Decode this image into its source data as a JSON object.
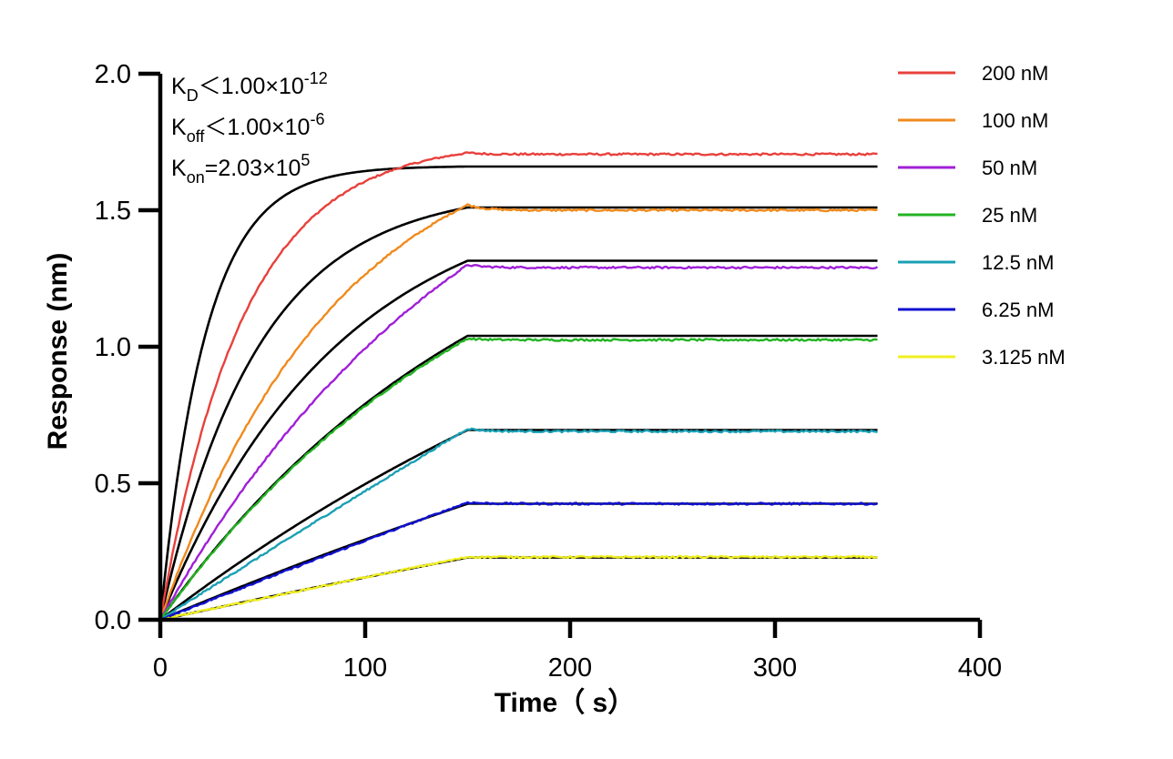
{
  "chart_data": {
    "type": "line",
    "xlabel": "Time（ s）",
    "ylabel": "Response (nm)",
    "xlim": [
      0,
      400
    ],
    "ylim": [
      0,
      2.0
    ],
    "x_ticks": [
      "0",
      "100",
      "200",
      "300",
      "400"
    ],
    "y_ticks": [
      "0.0",
      "0.5",
      "1.0",
      "1.5",
      "2.0"
    ],
    "grid": false,
    "legend_position": "top-right",
    "annotations": [
      {
        "main": "K",
        "sub": "D",
        "rest": "＜1.00×10",
        "sup": "-12"
      },
      {
        "main": "K",
        "sub": "off",
        "rest": "＜1.00×10",
        "sup": "-6"
      },
      {
        "main": "K",
        "sub": "on",
        "rest": "=2.03×10",
        "sup": "5"
      }
    ],
    "association_end": 150,
    "dissociation_end": 350,
    "series": [
      {
        "name": "200 nM",
        "color": "#e8413c",
        "association_shape": "concave",
        "peak": 1.71,
        "plateau": 1.705,
        "fit_plateau": 1.66,
        "fit_rate": 0.045
      },
      {
        "name": "100 nM",
        "color": "#f08a1c",
        "association_shape": "concave",
        "peak": 1.52,
        "plateau": 1.5,
        "fit_plateau": 1.51,
        "fit_rate": 0.021
      },
      {
        "name": "50 nM",
        "color": "#a020d8",
        "association_shape": "concave",
        "peak": 1.3,
        "plateau": 1.29,
        "fit_plateau": 1.315,
        "fit_rate": 0.0115
      },
      {
        "name": "25 nM",
        "color": "#22b422",
        "association_shape": "concave",
        "peak": 1.03,
        "plateau": 1.025,
        "fit_plateau": 1.04,
        "fit_rate": 0.006
      },
      {
        "name": "12.5 nM",
        "color": "#1aa0b4",
        "association_shape": "linear",
        "peak": 0.7,
        "plateau": 0.69,
        "fit_plateau": 0.695,
        "fit_rate": 0.003
      },
      {
        "name": "6.25 nM",
        "color": "#1010d0",
        "association_shape": "linear",
        "peak": 0.43,
        "plateau": 0.425,
        "fit_plateau": 0.425,
        "fit_rate": 0.0015
      },
      {
        "name": "3.125 nM",
        "color": "#f0f020",
        "association_shape": "linear",
        "peak": 0.23,
        "plateau": 0.23,
        "fit_plateau": 0.228,
        "fit_rate": 0.0008
      }
    ],
    "fit_color": "#000000"
  }
}
